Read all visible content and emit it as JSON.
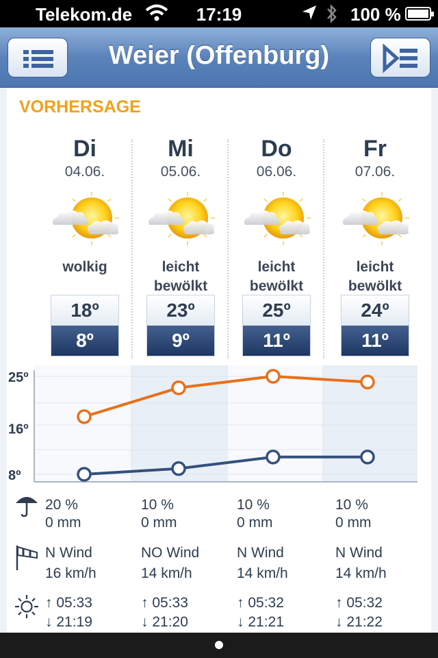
{
  "status": {
    "carrier": "Telekom.de",
    "time": "17:19",
    "battery": "100 %"
  },
  "nav": {
    "title": "Weier (Offenburg)"
  },
  "section_title": "VORHERSAGE",
  "days": [
    {
      "day": "Di",
      "date": "04.06.",
      "desc1": "wolkig",
      "desc2": "",
      "hi": "18º",
      "lo": "8º",
      "rain_pct": "20 %",
      "rain_mm": "0 mm",
      "wind_dir": "N Wind",
      "wind_speed": "16 km/h",
      "sunrise": "↑  05:33",
      "sunset": "↓  21:19"
    },
    {
      "day": "Mi",
      "date": "05.06.",
      "desc1": "leicht",
      "desc2": "bewölkt",
      "hi": "23º",
      "lo": "9º",
      "rain_pct": "10 %",
      "rain_mm": "0 mm",
      "wind_dir": "NO Wind",
      "wind_speed": "14 km/h",
      "sunrise": "↑  05:33",
      "sunset": "↓  21:20"
    },
    {
      "day": "Do",
      "date": "06.06.",
      "desc1": "leicht",
      "desc2": "bewölkt",
      "hi": "25º",
      "lo": "11º",
      "rain_pct": "10 %",
      "rain_mm": "0 mm",
      "wind_dir": "N Wind",
      "wind_speed": "14 km/h",
      "sunrise": "↑  05:32",
      "sunset": "↓  21:21"
    },
    {
      "day": "Fr",
      "date": "07.06.",
      "desc1": "leicht",
      "desc2": "bewölkt",
      "hi": "24º",
      "lo": "11º",
      "rain_pct": "10 %",
      "rain_mm": "0 mm",
      "wind_dir": "N Wind",
      "wind_speed": "14 km/h",
      "sunrise": "↑  05:32",
      "sunset": "↓  21:22"
    }
  ],
  "icons": {
    "menu": "list-icon",
    "sidebar": "sidebar-toggle-icon",
    "weather": "partly-cloudy-icon",
    "rain": "umbrella-icon",
    "wind": "windsock-icon",
    "sun": "sun-icon"
  },
  "chart_data": {
    "type": "line",
    "categories": [
      "Di",
      "Mi",
      "Do",
      "Fr"
    ],
    "series": [
      {
        "values": [
          18,
          23,
          25,
          24
        ],
        "color": "#e8701a"
      },
      {
        "values": [
          8,
          9,
          11,
          11
        ],
        "color": "#34507c"
      }
    ],
    "ticks": [
      "25º",
      "16º",
      "8º"
    ],
    "tick_values": [
      25,
      16,
      8
    ],
    "ylim": [
      8,
      25
    ],
    "grid": true
  }
}
